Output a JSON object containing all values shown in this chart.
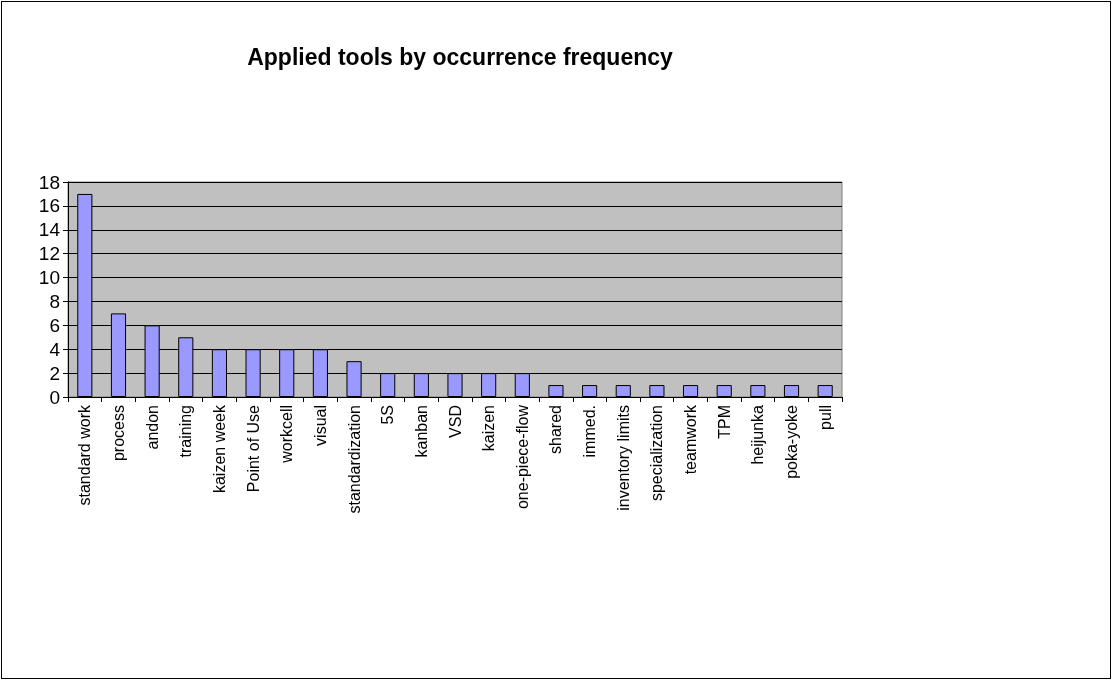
{
  "chart_data": {
    "type": "bar",
    "title": "Applied tools by occurrence frequency",
    "categories": [
      "standard work",
      "process",
      "andon",
      "training",
      "kaizen week",
      "Point of Use",
      "workcell",
      "visual",
      "standardization",
      "5S",
      "kanban",
      "VSD",
      "kaizen",
      "one-piece-flow",
      "shared",
      "immed.",
      "inventory limits",
      "specialization",
      "teamwork",
      "TPM",
      "heijunka",
      "poka-yoke",
      "pull"
    ],
    "values": [
      17,
      7,
      6,
      5,
      4,
      4,
      4,
      4,
      3,
      2,
      2,
      2,
      2,
      2,
      1,
      1,
      1,
      1,
      1,
      1,
      1,
      1,
      1
    ],
    "color": "#9999ff",
    "ylim": [
      0,
      18
    ],
    "yticks": [
      0,
      2,
      4,
      6,
      8,
      10,
      12,
      14,
      16,
      18
    ],
    "grid": "y"
  }
}
